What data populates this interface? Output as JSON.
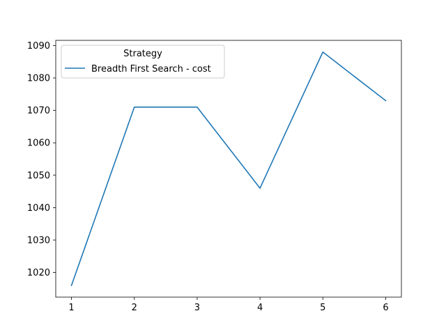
{
  "chart_data": {
    "type": "line",
    "title": "",
    "xlabel": "",
    "ylabel": "",
    "x": [
      1,
      2,
      3,
      4,
      5,
      6
    ],
    "xlim": [
      0.75,
      6.25
    ],
    "ylim": [
      1012.4,
      1091.6
    ],
    "xticks": [
      1,
      2,
      3,
      4,
      5,
      6
    ],
    "yticks": [
      1020,
      1030,
      1040,
      1050,
      1060,
      1070,
      1080,
      1090
    ],
    "grid": false,
    "legend": {
      "title": "Strategy",
      "placement": "top-left"
    },
    "series": [
      {
        "name": "Breadth First Search - cost",
        "color": "#1f77b4",
        "values": [
          1016,
          1071,
          1071,
          1046,
          1088,
          1073
        ]
      }
    ]
  }
}
